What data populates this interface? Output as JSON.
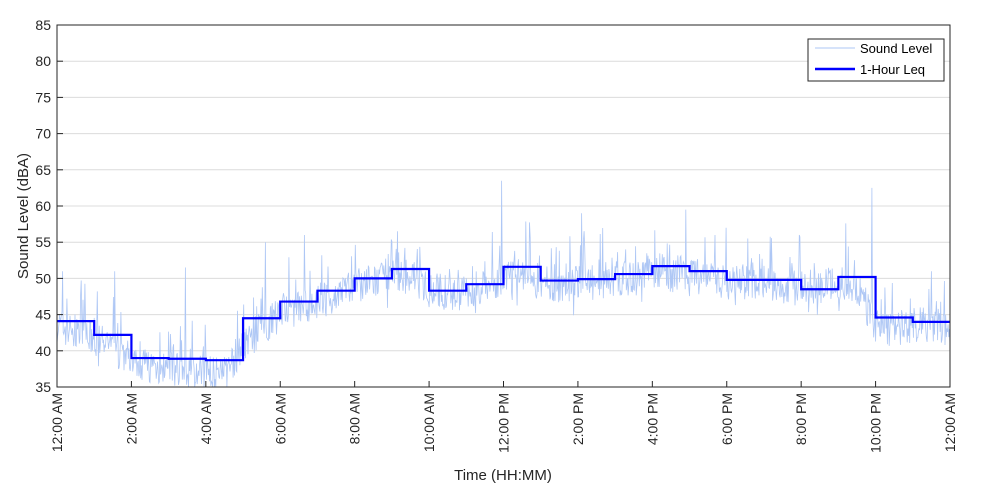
{
  "chart_data": {
    "type": "line",
    "title": "",
    "xlabel": "Time (HH:MM)",
    "ylabel": "Sound Level (dBA)",
    "ylim": [
      35,
      85
    ],
    "yticks": [
      35,
      40,
      45,
      50,
      55,
      60,
      65,
      70,
      75,
      80,
      85
    ],
    "xlim_hours": [
      0,
      24
    ],
    "xticks": [
      {
        "hour": 0,
        "label": "12:00 AM"
      },
      {
        "hour": 2,
        "label": "2:00 AM"
      },
      {
        "hour": 4,
        "label": "4:00 AM"
      },
      {
        "hour": 6,
        "label": "6:00 AM"
      },
      {
        "hour": 8,
        "label": "8:00 AM"
      },
      {
        "hour": 10,
        "label": "10:00 AM"
      },
      {
        "hour": 12,
        "label": "12:00 PM"
      },
      {
        "hour": 14,
        "label": "2:00 PM"
      },
      {
        "hour": 16,
        "label": "4:00 PM"
      },
      {
        "hour": 18,
        "label": "6:00 PM"
      },
      {
        "hour": 20,
        "label": "8:00 PM"
      },
      {
        "hour": 22,
        "label": "10:00 PM"
      },
      {
        "hour": 24,
        "label": "12:00 AM"
      }
    ],
    "grid": "horizontal",
    "legend": "top-right",
    "series": [
      {
        "name": "Sound Level",
        "color": "#aec7f5",
        "style": "thin line, high-frequency minute-level fluctuation",
        "x_hours": [
          0,
          0.5,
          1,
          1.5,
          2,
          2.5,
          3,
          3.5,
          4,
          4.5,
          5,
          5.5,
          6,
          6.5,
          7,
          7.5,
          8,
          8.5,
          9,
          9.5,
          10,
          10.5,
          11,
          11.5,
          12,
          12.5,
          13,
          13.5,
          14,
          14.5,
          15,
          15.5,
          16,
          16.5,
          17,
          17.5,
          18,
          18.5,
          19,
          19.5,
          20,
          20.5,
          21,
          21.5,
          22,
          22.5,
          23,
          23.5,
          24
        ],
        "values": [
          43.5,
          42.5,
          41.5,
          40.5,
          39,
          38,
          37.5,
          37,
          37,
          36.5,
          41,
          43,
          45,
          46,
          47,
          47.5,
          49,
          49.5,
          50,
          50.5,
          48.5,
          48,
          48,
          49,
          50,
          50.5,
          49.5,
          49,
          49.5,
          49.5,
          50,
          50,
          51,
          51,
          50.5,
          50,
          49.5,
          49.5,
          49.5,
          49,
          48.5,
          48.5,
          49.5,
          49,
          43.5,
          43,
          43.5,
          43.5,
          43
        ],
        "peaks": [
          {
            "hour": 0.15,
            "value": 51
          },
          {
            "hour": 1.55,
            "value": 51
          },
          {
            "hour": 3.45,
            "value": 51.5
          },
          {
            "hour": 5.6,
            "value": 55
          },
          {
            "hour": 6.65,
            "value": 56
          },
          {
            "hour": 9.15,
            "value": 56.5
          },
          {
            "hour": 11.95,
            "value": 63.5
          },
          {
            "hour": 14.1,
            "value": 59
          },
          {
            "hour": 16.9,
            "value": 59.5
          },
          {
            "hour": 19.95,
            "value": 56
          },
          {
            "hour": 21.9,
            "value": 62.5
          },
          {
            "hour": 23.5,
            "value": 51
          }
        ]
      },
      {
        "name": "1-Hour Leq",
        "color": "#0000ff",
        "style": "thick step line",
        "hour_starts": [
          0,
          1,
          2,
          3,
          4,
          5,
          6,
          7,
          8,
          9,
          10,
          11,
          12,
          13,
          14,
          15,
          16,
          17,
          18,
          19,
          20,
          21,
          22,
          23
        ],
        "values": [
          44.1,
          42.2,
          39,
          38.9,
          38.7,
          44.5,
          46.8,
          48.3,
          50,
          51.3,
          48.3,
          49.2,
          51.6,
          49.7,
          49.9,
          50.6,
          51.7,
          51,
          49.8,
          49.8,
          48.5,
          50.2,
          44.6,
          44
        ]
      }
    ]
  }
}
